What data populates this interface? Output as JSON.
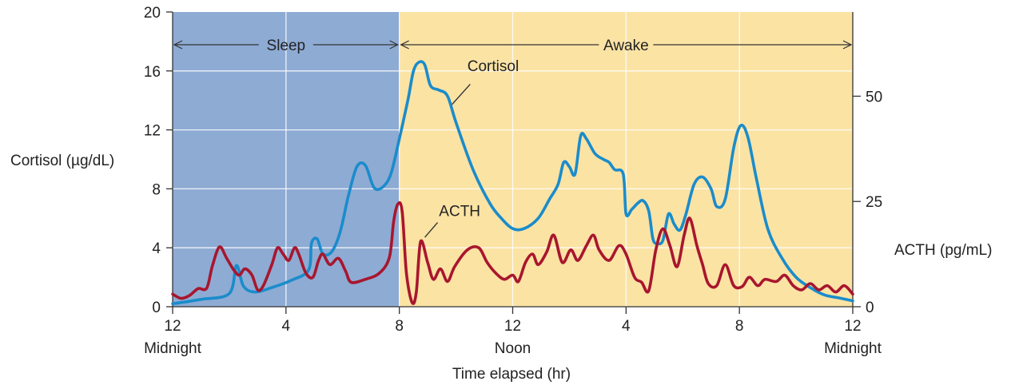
{
  "chart_data": {
    "type": "line",
    "xlabel": "Time elapsed (hr)",
    "ylabel_left": "Cortisol (µg/dL)",
    "ylabel_right": "ACTH (pg/mL)",
    "x_range": [
      0,
      24
    ],
    "x_ticks": [
      {
        "x": 0,
        "label": "12",
        "sub": "Midnight"
      },
      {
        "x": 4,
        "label": "4",
        "sub": ""
      },
      {
        "x": 8,
        "label": "8",
        "sub": ""
      },
      {
        "x": 12,
        "label": "12",
        "sub": "Noon"
      },
      {
        "x": 16,
        "label": "4",
        "sub": ""
      },
      {
        "x": 20,
        "label": "8",
        "sub": ""
      },
      {
        "x": 24,
        "label": "12",
        "sub": "Midnight"
      }
    ],
    "ylim_left": [
      0,
      20
    ],
    "yticks_left": [
      0,
      4,
      8,
      12,
      16,
      20
    ],
    "ylim_right": [
      0,
      70
    ],
    "yticks_right": [
      0,
      25,
      50
    ],
    "grid": true,
    "bands": [
      {
        "label": "Sleep",
        "x0": 0,
        "x1": 8,
        "color": "#8eabd4"
      },
      {
        "label": "Awake",
        "x0": 8,
        "x1": 24,
        "color": "#fbe3a4"
      }
    ],
    "series": [
      {
        "name": "Cortisol",
        "axis": "left",
        "color": "#1a8ccb",
        "label_x": 10.4,
        "label_y": 16.0,
        "points": [
          [
            0,
            0.2
          ],
          [
            1,
            0.5
          ],
          [
            2,
            0.9
          ],
          [
            2.25,
            2.8
          ],
          [
            2.5,
            1.4
          ],
          [
            2.9,
            1.0
          ],
          [
            3.5,
            1.3
          ],
          [
            4.2,
            1.8
          ],
          [
            4.8,
            2.5
          ],
          [
            4.9,
            4.3
          ],
          [
            5.1,
            4.6
          ],
          [
            5.3,
            3.6
          ],
          [
            5.6,
            3.7
          ],
          [
            5.9,
            5.0
          ],
          [
            6.2,
            7.5
          ],
          [
            6.5,
            9.5
          ],
          [
            6.8,
            9.6
          ],
          [
            7.1,
            8.1
          ],
          [
            7.4,
            8.1
          ],
          [
            7.7,
            9.0
          ],
          [
            8.0,
            11.4
          ],
          [
            8.3,
            14.0
          ],
          [
            8.5,
            16.0
          ],
          [
            8.7,
            16.6
          ],
          [
            8.9,
            16.4
          ],
          [
            9.1,
            15.0
          ],
          [
            9.4,
            14.7
          ],
          [
            9.7,
            14.3
          ],
          [
            10.0,
            12.5
          ],
          [
            10.6,
            9.3
          ],
          [
            11.2,
            7.0
          ],
          [
            11.6,
            6.0
          ],
          [
            12.0,
            5.3
          ],
          [
            12.4,
            5.3
          ],
          [
            12.9,
            6.0
          ],
          [
            13.3,
            7.3
          ],
          [
            13.6,
            8.3
          ],
          [
            13.8,
            9.8
          ],
          [
            14.0,
            9.5
          ],
          [
            14.2,
            9.0
          ],
          [
            14.4,
            11.6
          ],
          [
            14.6,
            11.4
          ],
          [
            14.9,
            10.4
          ],
          [
            15.2,
            10.0
          ],
          [
            15.4,
            9.8
          ],
          [
            15.6,
            9.3
          ],
          [
            15.9,
            9.0
          ],
          [
            16.0,
            6.3
          ],
          [
            16.2,
            6.6
          ],
          [
            16.4,
            7.0
          ],
          [
            16.6,
            7.2
          ],
          [
            16.8,
            6.5
          ],
          [
            16.95,
            4.6
          ],
          [
            17.1,
            4.3
          ],
          [
            17.3,
            4.5
          ],
          [
            17.5,
            6.3
          ],
          [
            17.7,
            5.6
          ],
          [
            17.9,
            5.2
          ],
          [
            18.1,
            6.2
          ],
          [
            18.4,
            8.3
          ],
          [
            18.7,
            8.8
          ],
          [
            19.0,
            8.0
          ],
          [
            19.2,
            6.8
          ],
          [
            19.5,
            7.3
          ],
          [
            19.8,
            10.8
          ],
          [
            20.05,
            12.3
          ],
          [
            20.3,
            11.5
          ],
          [
            20.6,
            8.7
          ],
          [
            21.0,
            5.3
          ],
          [
            21.5,
            3.3
          ],
          [
            22.0,
            2.0
          ],
          [
            22.5,
            1.3
          ],
          [
            23.0,
            0.8
          ],
          [
            23.5,
            0.6
          ],
          [
            24.0,
            0.4
          ]
        ]
      },
      {
        "name": "ACTH",
        "axis": "right",
        "color": "#a8162e",
        "label_x": 9.4,
        "label_y": 21.5,
        "points": [
          [
            0,
            3.0
          ],
          [
            0.3,
            2.0
          ],
          [
            0.6,
            2.7
          ],
          [
            0.9,
            4.3
          ],
          [
            1.2,
            4.4
          ],
          [
            1.4,
            9.6
          ],
          [
            1.65,
            14.2
          ],
          [
            1.9,
            11.6
          ],
          [
            2.15,
            8.8
          ],
          [
            2.35,
            7.5
          ],
          [
            2.55,
            9.0
          ],
          [
            2.8,
            7.5
          ],
          [
            3.0,
            4.0
          ],
          [
            3.2,
            5.0
          ],
          [
            3.5,
            10.0
          ],
          [
            3.7,
            14.0
          ],
          [
            3.9,
            12.5
          ],
          [
            4.1,
            11.0
          ],
          [
            4.3,
            14.0
          ],
          [
            4.45,
            12.5
          ],
          [
            4.7,
            8.0
          ],
          [
            4.95,
            7.0
          ],
          [
            5.15,
            11.0
          ],
          [
            5.3,
            12.5
          ],
          [
            5.55,
            10.0
          ],
          [
            5.85,
            11.5
          ],
          [
            6.1,
            8.5
          ],
          [
            6.3,
            5.8
          ],
          [
            6.8,
            6.5
          ],
          [
            7.3,
            8.0
          ],
          [
            7.65,
            11.8
          ],
          [
            7.8,
            20.3
          ],
          [
            7.95,
            24.4
          ],
          [
            8.1,
            22.6
          ],
          [
            8.25,
            8.0
          ],
          [
            8.45,
            1.0
          ],
          [
            8.6,
            3.5
          ],
          [
            8.75,
            15.5
          ],
          [
            9.0,
            10.5
          ],
          [
            9.2,
            6.5
          ],
          [
            9.45,
            9.0
          ],
          [
            9.7,
            6.0
          ],
          [
            9.95,
            9.5
          ],
          [
            10.4,
            13.5
          ],
          [
            10.8,
            14.0
          ],
          [
            11.1,
            10.5
          ],
          [
            11.4,
            8.0
          ],
          [
            11.7,
            6.5
          ],
          [
            12.0,
            7.5
          ],
          [
            12.2,
            6.0
          ],
          [
            12.45,
            10.5
          ],
          [
            12.7,
            12.5
          ],
          [
            12.9,
            10.0
          ],
          [
            13.2,
            13.0
          ],
          [
            13.45,
            17.0
          ],
          [
            13.75,
            10.5
          ],
          [
            14.05,
            13.5
          ],
          [
            14.3,
            11.0
          ],
          [
            14.6,
            14.5
          ],
          [
            14.85,
            17.0
          ],
          [
            15.05,
            13.5
          ],
          [
            15.4,
            11.0
          ],
          [
            15.75,
            14.5
          ],
          [
            16.0,
            12.5
          ],
          [
            16.3,
            7.0
          ],
          [
            16.55,
            5.8
          ],
          [
            16.8,
            3.8
          ],
          [
            17.05,
            13.5
          ],
          [
            17.3,
            18.5
          ],
          [
            17.55,
            14.5
          ],
          [
            17.8,
            9.5
          ],
          [
            18.05,
            17.0
          ],
          [
            18.25,
            21.0
          ],
          [
            18.5,
            14.5
          ],
          [
            18.7,
            10.0
          ],
          [
            18.9,
            5.5
          ],
          [
            19.2,
            5.0
          ],
          [
            19.5,
            10.0
          ],
          [
            19.8,
            5.0
          ],
          [
            20.1,
            4.8
          ],
          [
            20.35,
            7.0
          ],
          [
            20.65,
            5.0
          ],
          [
            20.9,
            6.5
          ],
          [
            21.3,
            6.0
          ],
          [
            21.6,
            7.5
          ],
          [
            21.9,
            5.0
          ],
          [
            22.2,
            4.0
          ],
          [
            22.5,
            5.5
          ],
          [
            22.8,
            4.0
          ],
          [
            23.1,
            5.0
          ],
          [
            23.4,
            3.5
          ],
          [
            23.7,
            5.0
          ],
          [
            24.0,
            3.0
          ]
        ]
      }
    ]
  }
}
